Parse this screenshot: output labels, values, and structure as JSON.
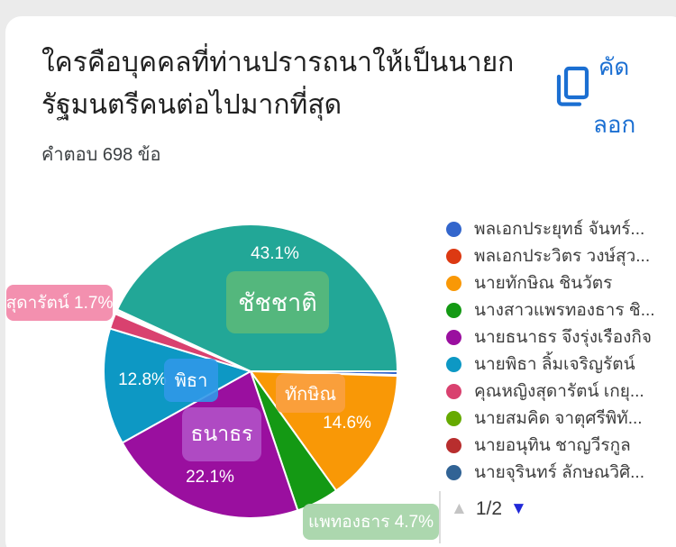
{
  "page": {
    "background": "#ebebeb",
    "card_background": "#ffffff"
  },
  "header": {
    "title_line1": "ใครคือบุคคลที่ท่านปรารถนาให้เป็นนายก",
    "title_line2": "รัฐมนตรีคนต่อไปมากที่สุด",
    "responses_label": "คำตอบ 698 ข้อ",
    "copy_button": {
      "label_top": "คัด",
      "label_bottom": "ลอก",
      "color": "#1b6fd2"
    }
  },
  "chart_data": {
    "type": "pie",
    "title": "ใครคือบุคคลที่ท่านปรารถนาให้เป็นนายกรัฐมนตรีคนต่อไปมากที่สุด",
    "responses_count": 698,
    "start_angle_deg": 0,
    "direction": "clockwise",
    "legend_position": "right",
    "slices": [
      {
        "id": "prayut",
        "legend_label": "พลเอกประยุทธ์ จันทร์...",
        "value": 0.4,
        "color": "#3366CC"
      },
      {
        "id": "prawit",
        "legend_label": "พลเอกประวิตร วงษ์สุว...",
        "value": 0.1,
        "color": "#DC3912"
      },
      {
        "id": "thaksin",
        "legend_label": "นายทักษิณ ชินวัตร",
        "value": 14.6,
        "color": "#F99806"
      },
      {
        "id": "paethongtharn",
        "legend_label": "นางสาวแพรทองธาร ชิ...",
        "value": 4.7,
        "color": "#149914"
      },
      {
        "id": "thanathorn",
        "legend_label": "นายธนาธร จึงรุ่งเรืองกิจ",
        "value": 22.1,
        "color": "#9A0F9F"
      },
      {
        "id": "pita",
        "legend_label": "นายพิธา ลิ้มเจริญรัตน์",
        "value": 12.8,
        "color": "#0D98C4"
      },
      {
        "id": "sudarat",
        "legend_label": "คุณหญิงสุดารัตน์ เกยุ...",
        "value": 1.7,
        "color": "#D9416F"
      },
      {
        "id": "somkid",
        "legend_label": "นายสมคิด จาตุศรีพิทั...",
        "value": 0.1,
        "color": "#66AA00"
      },
      {
        "id": "anutin",
        "legend_label": "นายอนุทิน ชาญวีรกูล",
        "value": 0.2,
        "color": "#B82E2E"
      },
      {
        "id": "jurin",
        "legend_label": "นายจุรินทร์ ลักษณวิศิ...",
        "value": 0.2,
        "color": "#316395"
      },
      {
        "id": "chadchart",
        "legend_label": null,
        "value": 43.1,
        "color": "#22A797"
      }
    ],
    "percent_labels": {
      "chadchart": "43.1%",
      "thaksin": "14.6%",
      "thanathorn": "22.1%",
      "pita": "12.8%"
    },
    "stickers": {
      "chadchart": "ชัชชาติ",
      "thaksin": "ทักษิณ",
      "thanathorn": "ธนาธร",
      "pita": "พิธา",
      "paethongtharn": "แพทองธาร 4.7%",
      "sudarat": "สุดารัตน์ 1.7%"
    }
  },
  "pagination": {
    "label": "1/2"
  }
}
